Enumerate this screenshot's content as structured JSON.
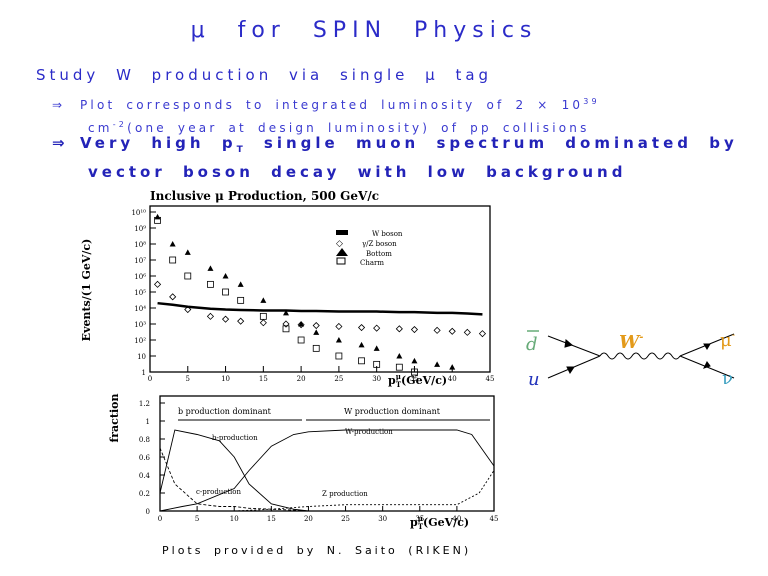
{
  "title": "μ for SPIN Physics",
  "heading": "Study W production via single μ tag",
  "bullets": [
    {
      "arrow": "⇒",
      "line1_pre": "Plot corresponds to integrated luminosity of 2 × 10",
      "line1_sup": "39",
      "line2_pre": "cm",
      "line2_sup": "-2",
      "line2_post": "(one year at design luminosity) of pp collisions"
    },
    {
      "arrow": "⇒",
      "line1_pre": "Very high p",
      "line1_sub": "T",
      "line1_post": " single muon spectrum dominated by",
      "line2": "vector boson decay with low background"
    }
  ],
  "caption": "Plots provided by N. Saito (RIKEN)",
  "plot_top": {
    "title": "Inclusive μ Production, 500 GeV/c",
    "ylabel": "Events/(1 GeV/c)",
    "xlabel": "p",
    "xlabel_sup": "μ",
    "xlabel_sub": "T",
    "xlabel_unit": "(GeV/c)",
    "yticks": [
      "10¹⁰",
      "10⁹",
      "10⁸",
      "10⁷",
      "10⁶",
      "10⁵",
      "10⁴",
      "10³",
      "10²",
      "10",
      "1"
    ],
    "xticks": [
      "0",
      "5",
      "10",
      "15",
      "20",
      "25",
      "30",
      "35",
      "40",
      "45"
    ],
    "legend": [
      "W boson",
      "γ/Z boson",
      "Bottom",
      "Charm"
    ]
  },
  "plot_bottom": {
    "ylabel": "fraction",
    "xlabel": "p",
    "xlabel_sup": "μ",
    "xlabel_sub": "T",
    "xlabel_unit": "(GeV/c)",
    "yticks": [
      "1.2",
      "1",
      "0.8",
      "0.6",
      "0.4",
      "0.2",
      "0"
    ],
    "xticks": [
      "0",
      "5",
      "10",
      "15",
      "20",
      "25",
      "30",
      "35",
      "40",
      "45"
    ],
    "annotations": [
      "b production dominant",
      "W production dominant",
      "b-production",
      "W-production",
      "c-production",
      "Z production"
    ]
  },
  "feynman": {
    "in_top": "d",
    "in_bottom": "u",
    "boson": "W",
    "boson_sup": "-",
    "out_top": "μ",
    "out_top_sup": "-",
    "out_bottom": "ν"
  },
  "chart_data": [
    {
      "type": "scatter",
      "title": "Inclusive μ Production, 500 GeV/c",
      "xlabel": "pT (GeV/c)",
      "ylabel": "Events/(1 GeV/c)",
      "xlim": [
        0,
        45
      ],
      "ylim": [
        1,
        10000000000
      ],
      "log_y": true,
      "series": [
        {
          "name": "W boson",
          "x": [
            1,
            3,
            5,
            8,
            10,
            12,
            15,
            18,
            20,
            22,
            25,
            28,
            30,
            33,
            35,
            38,
            40,
            42,
            44
          ],
          "y": [
            20000,
            16000,
            12000,
            9000,
            8000,
            7500,
            7000,
            7000,
            6500,
            6500,
            6000,
            6000,
            6000,
            5500,
            5500,
            5000,
            5000,
            4500,
            4000
          ]
        },
        {
          "name": "γ/Z boson",
          "x": [
            1,
            3,
            5,
            8,
            10,
            12,
            15,
            18,
            20,
            22,
            25,
            28,
            30,
            33,
            35,
            38,
            40,
            42,
            44
          ],
          "y": [
            300000,
            50000,
            8000,
            3000,
            2000,
            1500,
            1200,
            1000,
            900,
            800,
            700,
            600,
            550,
            500,
            450,
            400,
            350,
            300,
            250
          ]
        },
        {
          "name": "Bottom",
          "x": [
            1,
            3,
            5,
            8,
            10,
            12,
            15,
            18,
            20,
            22,
            25,
            28,
            30,
            33,
            35,
            38,
            40
          ],
          "y": [
            5000000000,
            100000000,
            30000000,
            3000000,
            1000000,
            300000,
            30000,
            5000,
            1000,
            300,
            100,
            50,
            30,
            10,
            5,
            3,
            2
          ]
        },
        {
          "name": "Charm",
          "x": [
            1,
            3,
            5,
            8,
            10,
            12,
            15,
            18,
            20,
            22,
            25,
            28,
            30,
            33,
            35
          ],
          "y": [
            3000000000,
            10000000,
            1000000,
            300000,
            100000,
            30000,
            3000,
            500,
            100,
            30,
            10,
            5,
            3,
            2,
            1
          ]
        }
      ]
    },
    {
      "type": "line",
      "xlabel": "pT (GeV/c)",
      "ylabel": "fraction",
      "xlim": [
        0,
        45
      ],
      "ylim": [
        0,
        1.2
      ],
      "series": [
        {
          "x": [
            0,
            2,
            5,
            8,
            10,
            12,
            15,
            18,
            20
          ],
          "y": [
            0.2,
            0.9,
            0.85,
            0.78,
            0.6,
            0.3,
            0.08,
            0.02,
            0.0
          ]
        },
        {
          "x": [
            0,
            3,
            5,
            10,
            12,
            15,
            18,
            20,
            25,
            30,
            35,
            40,
            42,
            45
          ],
          "y": [
            0,
            0.05,
            0.08,
            0.25,
            0.45,
            0.72,
            0.85,
            0.88,
            0.9,
            0.9,
            0.9,
            0.9,
            0.85,
            0.5
          ]
        },
        {
          "x": [
            0,
            2,
            5,
            8,
            10,
            12,
            15,
            18,
            20
          ],
          "y": [
            0.7,
            0.3,
            0.08,
            0.05,
            0.05,
            0.03,
            0.02,
            0.01,
            0.0
          ]
        },
        {
          "x": [
            10,
            15,
            20,
            25,
            30,
            35,
            40,
            43,
            45
          ],
          "y": [
            0,
            0.02,
            0.05,
            0.07,
            0.07,
            0.07,
            0.07,
            0.2,
            0.45
          ]
        }
      ]
    }
  ]
}
